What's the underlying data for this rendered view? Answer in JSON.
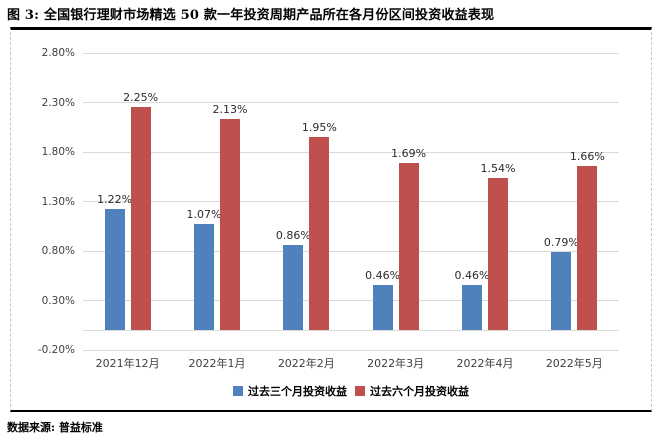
{
  "title": "图 3: 全国银行理财市场精选 50 款一年投资周期产品所在各月份区间投资收益表现",
  "source_note": "数据来源: 普益标准",
  "colors": {
    "series1_blue": "#4F81BD",
    "series2_red": "#C0504D",
    "gridline": "#D9D9D9",
    "box_border": "#000000",
    "box_side_dash": "#C6C6C6"
  },
  "chart_data": {
    "type": "bar",
    "title": "图 3: 全国银行理财市场精选 50 款一年投资周期产品所在各月份区间投资收益表现",
    "categories": [
      "2021年12月",
      "2022年1月",
      "2022年2月",
      "2022年3月",
      "2022年4月",
      "2022年5月"
    ],
    "series": [
      {
        "name": "过去三个月投资收益",
        "color": "#4F81BD",
        "values": [
          1.22,
          1.07,
          0.86,
          0.46,
          0.46,
          0.79
        ]
      },
      {
        "name": "过去六个月投资收益",
        "color": "#C0504D",
        "values": [
          2.25,
          2.13,
          1.95,
          1.69,
          1.54,
          1.66
        ]
      }
    ],
    "data_labels": [
      [
        "1.22%",
        "1.07%",
        "0.86%",
        "0.46%",
        "0.46%",
        "0.79%"
      ],
      [
        "2.25%",
        "2.13%",
        "1.95%",
        "1.69%",
        "1.54%",
        "1.66%"
      ]
    ],
    "unit": "%",
    "ylim": [
      -0.2,
      2.8
    ],
    "ytick_step": 0.5,
    "yticks": [
      2.8,
      2.3,
      1.8,
      1.3,
      0.8,
      0.3,
      -0.2
    ],
    "ytick_labels": [
      "2.80%",
      "2.30%",
      "1.80%",
      "1.30%",
      "0.80%",
      "0.30%",
      "-0.20%"
    ],
    "grid": true,
    "legend_position": "bottom",
    "xlabel": "",
    "ylabel": ""
  }
}
